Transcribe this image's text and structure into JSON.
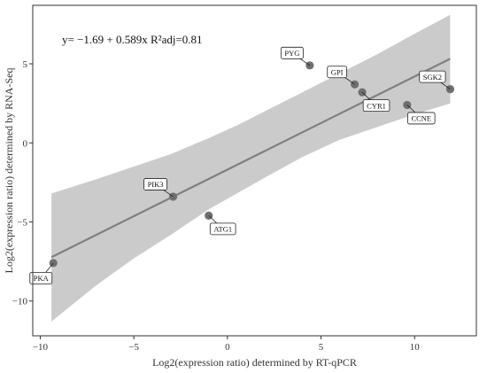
{
  "chart_data": {
    "type": "scatter",
    "title": "",
    "xlabel": "Log2(expression ratio) determined by RT-qPCR",
    "ylabel": "Log2(expression ratio) determined by RNA-Seq",
    "xlim": [
      -10.4,
      13.3
    ],
    "ylim": [
      -12.2,
      8.7
    ],
    "x_ticks": [
      -10,
      -5,
      0,
      5,
      10
    ],
    "y_ticks": [
      -10,
      -5,
      0,
      5
    ],
    "x_tick_labels": [
      "−10",
      "−5",
      "0",
      "5",
      "10"
    ],
    "y_tick_labels": [
      "−10",
      "−5",
      "0",
      "5"
    ],
    "grid": false,
    "equation": "y= −1.69 + 0.589x  R²adj=0.81",
    "fit_line": {
      "intercept": -1.69,
      "slope": 0.589,
      "x_range": [
        -9.4,
        11.9
      ]
    },
    "confidence_band": {
      "x": [
        -9.4,
        -7.0,
        -5.0,
        -3.0,
        -1.0,
        0.5,
        2.0,
        4.0,
        6.0,
        8.0,
        10.0,
        11.9
      ],
      "upper": [
        -3.2,
        -2.3,
        -1.5,
        -0.7,
        0.3,
        1.1,
        2.0,
        3.2,
        4.4,
        5.6,
        6.9,
        8.1
      ],
      "lower": [
        -11.3,
        -9.0,
        -7.3,
        -5.8,
        -4.2,
        -3.2,
        -2.2,
        -0.9,
        0.2,
        1.0,
        1.8,
        2.5
      ]
    },
    "points": [
      {
        "label": "PYG",
        "x": 4.4,
        "y": 4.9,
        "pos": "upper-left"
      },
      {
        "label": "GPI",
        "x": 6.8,
        "y": 3.7,
        "pos": "upper-left"
      },
      {
        "label": "CYR1",
        "x": 7.2,
        "y": 3.2,
        "pos": "lower-right"
      },
      {
        "label": "SGK2",
        "x": 11.9,
        "y": 3.4,
        "pos": "upper-left"
      },
      {
        "label": "CCNE",
        "x": 9.6,
        "y": 2.4,
        "pos": "lower-right"
      },
      {
        "label": "PIK3",
        "x": -2.9,
        "y": -3.4,
        "pos": "upper-left"
      },
      {
        "label": "ATG1",
        "x": -1.0,
        "y": -4.6,
        "pos": "lower-right"
      },
      {
        "label": "PKA",
        "x": -9.3,
        "y": -7.6,
        "pos": "lower-left"
      }
    ],
    "colors": {
      "band": "#cbcbcb",
      "line": "#808080",
      "point": "#6f6f6f",
      "frame": "#333333"
    }
  }
}
